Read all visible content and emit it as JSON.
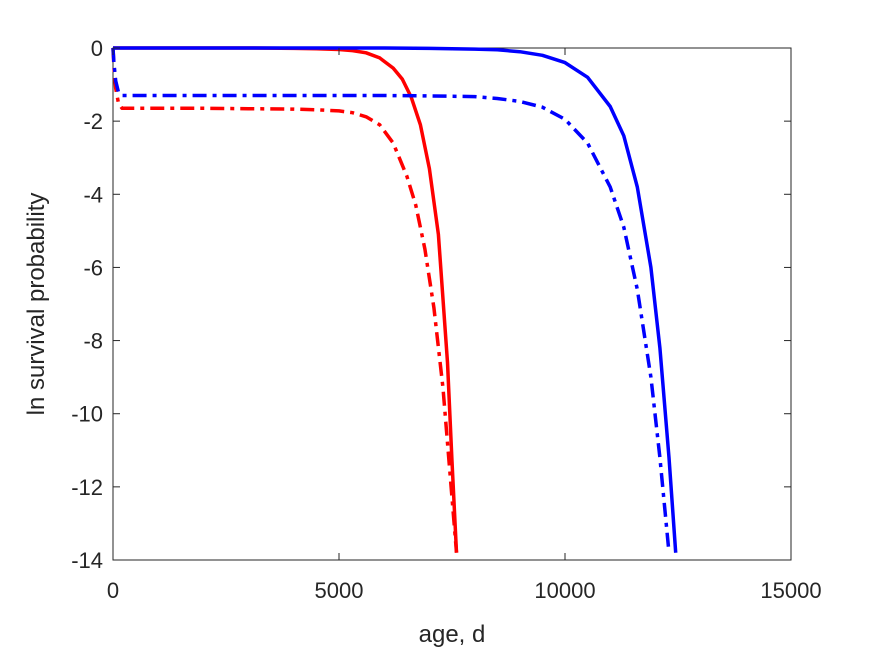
{
  "chart_data": {
    "type": "line",
    "title": "",
    "xlabel": "age, d",
    "ylabel": "ln survival probability",
    "xlim": [
      0,
      15000
    ],
    "ylim": [
      -14,
      0
    ],
    "xticks": [
      0,
      5000,
      10000,
      15000
    ],
    "yticks": [
      0,
      -2,
      -4,
      -6,
      -8,
      -10,
      -12,
      -14
    ],
    "xtick_labels": [
      "0",
      "5000",
      "10000",
      "15000"
    ],
    "ytick_labels": [
      "0",
      "-2",
      "-4",
      "-6",
      "-8",
      "-10",
      "-12",
      "-14"
    ],
    "grid": false,
    "legend": "none",
    "series": [
      {
        "color": "#ff0000",
        "style": "solid",
        "x": [
          0,
          1000,
          2000,
          3000,
          4000,
          4500,
          5000,
          5300,
          5600,
          5900,
          6200,
          6400,
          6600,
          6800,
          7000,
          7200,
          7400,
          7500,
          7600
        ],
        "y": [
          0,
          0,
          0,
          0,
          -0.01,
          -0.02,
          -0.04,
          -0.07,
          -0.13,
          -0.27,
          -0.55,
          -0.85,
          -1.35,
          -2.1,
          -3.3,
          -5.1,
          -8.6,
          -11.3,
          -13.8
        ]
      },
      {
        "color": "#ff0000",
        "style": "dashdot",
        "x": [
          0,
          20,
          60,
          120,
          200,
          1000,
          2000,
          3000,
          4000,
          4500,
          5000,
          5300,
          5600,
          5900,
          6200,
          6500,
          6700,
          6900,
          7100,
          7300,
          7500,
          7600
        ],
        "y": [
          0,
          -0.5,
          -1.1,
          -1.5,
          -1.65,
          -1.65,
          -1.65,
          -1.66,
          -1.67,
          -1.69,
          -1.72,
          -1.77,
          -1.88,
          -2.1,
          -2.6,
          -3.5,
          -4.3,
          -5.5,
          -7.1,
          -9.3,
          -12.3,
          -13.8
        ]
      },
      {
        "color": "#0000ff",
        "style": "solid",
        "x": [
          0,
          2000,
          4000,
          6000,
          7000,
          8000,
          8500,
          9000,
          9500,
          10000,
          10500,
          11000,
          11300,
          11600,
          11900,
          12100,
          12300,
          12450
        ],
        "y": [
          0,
          0,
          0,
          0,
          -0.01,
          -0.03,
          -0.05,
          -0.1,
          -0.2,
          -0.4,
          -0.8,
          -1.6,
          -2.4,
          -3.8,
          -6.0,
          -8.2,
          -11.2,
          -13.8
        ]
      },
      {
        "color": "#0000ff",
        "style": "dashdot",
        "x": [
          0,
          20,
          60,
          120,
          200,
          2000,
          4000,
          6000,
          7000,
          8000,
          8500,
          9000,
          9500,
          10000,
          10500,
          11000,
          11300,
          11600,
          11900,
          12100,
          12300
        ],
        "y": [
          0,
          -0.4,
          -0.9,
          -1.2,
          -1.3,
          -1.3,
          -1.3,
          -1.3,
          -1.31,
          -1.33,
          -1.38,
          -1.46,
          -1.62,
          -1.95,
          -2.6,
          -3.8,
          -4.9,
          -6.6,
          -9.0,
          -11.2,
          -13.8
        ]
      }
    ]
  }
}
